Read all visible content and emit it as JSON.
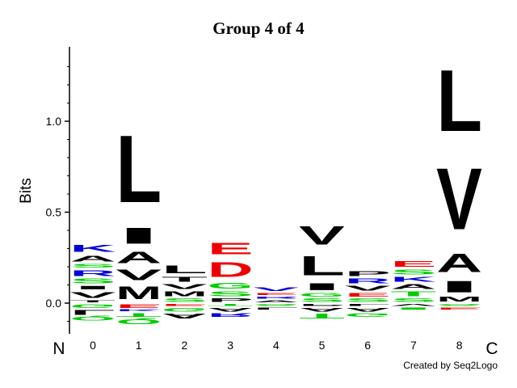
{
  "colors": {
    "hydrophobic": "#000000",
    "polar": "#00cc00",
    "positive": "#0000dd",
    "negative": "#ee0000",
    "special": "#00cc00"
  },
  "chart_data": {
    "type": "sequence-logo",
    "title": "Group 4 of 4",
    "xlabel": "",
    "ylabel": "Bits",
    "ylim": [
      -0.15,
      1.38
    ],
    "yticks": [
      0.0,
      0.5,
      1.0
    ],
    "ytick_labels": [
      "0.0",
      "0.5",
      "1.0"
    ],
    "n_terminus_label": "N",
    "c_terminus_label": "C",
    "credit": "Created by Seq2Logo",
    "positions": [
      {
        "x": "0",
        "above": [
          {
            "letter": "T",
            "bits": 0.02,
            "color": "#000000"
          },
          {
            "letter": "V",
            "bits": 0.05,
            "color": "#000000"
          },
          {
            "letter": "I",
            "bits": 0.03,
            "color": "#000000"
          },
          {
            "letter": "S",
            "bits": 0.04,
            "color": "#00cc00"
          },
          {
            "letter": "R",
            "bits": 0.05,
            "color": "#0000dd"
          },
          {
            "letter": "S",
            "bits": 0.03,
            "color": "#00cc00"
          },
          {
            "letter": "A",
            "bits": 0.05,
            "color": "#000000"
          },
          {
            "letter": "K",
            "bits": 0.06,
            "color": "#0000dd"
          }
        ],
        "below": [
          {
            "letter": "G",
            "bits": 0.03,
            "color": "#00cc00"
          },
          {
            "letter": "L",
            "bits": 0.04,
            "color": "#000000"
          },
          {
            "letter": "Q",
            "bits": 0.03,
            "color": "#00cc00"
          }
        ]
      },
      {
        "x": "1",
        "above": [
          {
            "letter": "M",
            "bits": 0.11,
            "color": "#000000"
          },
          {
            "letter": "V",
            "bits": 0.09,
            "color": "#000000"
          },
          {
            "letter": "A",
            "bits": 0.1,
            "color": "#000000"
          },
          {
            "letter": "I",
            "bits": 0.14,
            "color": "#000000"
          },
          {
            "letter": "L",
            "bits": 0.59,
            "color": "#000000"
          }
        ],
        "below": [
          {
            "letter": "E",
            "bits": 0.03,
            "color": "#ee0000"
          },
          {
            "letter": "K",
            "bits": 0.02,
            "color": "#0000dd"
          },
          {
            "letter": "T",
            "bits": 0.03,
            "color": "#00cc00"
          },
          {
            "letter": "Q",
            "bits": 0.04,
            "color": "#00cc00"
          }
        ]
      },
      {
        "x": "2",
        "above": [
          {
            "letter": "S",
            "bits": 0.03,
            "color": "#00cc00"
          },
          {
            "letter": "M",
            "bits": 0.04,
            "color": "#000000"
          },
          {
            "letter": "V",
            "bits": 0.04,
            "color": "#000000"
          },
          {
            "letter": "T",
            "bits": 0.04,
            "color": "#000000"
          },
          {
            "letter": "L",
            "bits": 0.07,
            "color": "#000000"
          }
        ],
        "below": [
          {
            "letter": "E",
            "bits": 0.02,
            "color": "#ee0000"
          },
          {
            "letter": "G",
            "bits": 0.03,
            "color": "#00cc00"
          },
          {
            "letter": "A",
            "bits": 0.04,
            "color": "#000000"
          }
        ]
      },
      {
        "x": "3",
        "above": [
          {
            "letter": "P",
            "bits": 0.03,
            "color": "#000000"
          },
          {
            "letter": "S",
            "bits": 0.04,
            "color": "#00cc00"
          },
          {
            "letter": "G",
            "bits": 0.05,
            "color": "#00cc00"
          },
          {
            "letter": "D",
            "bits": 0.13,
            "color": "#ee0000"
          },
          {
            "letter": "E",
            "bits": 0.1,
            "color": "#ee0000"
          }
        ],
        "below": [
          {
            "letter": "T",
            "bits": 0.02,
            "color": "#00cc00"
          },
          {
            "letter": "A",
            "bits": 0.03,
            "color": "#000000"
          },
          {
            "letter": "R",
            "bits": 0.03,
            "color": "#0000dd"
          }
        ]
      },
      {
        "x": "4",
        "above": [
          {
            "letter": "A",
            "bits": 0.02,
            "color": "#000000"
          },
          {
            "letter": "R",
            "bits": 0.02,
            "color": "#0000dd"
          },
          {
            "letter": "E",
            "bits": 0.02,
            "color": "#ee0000"
          },
          {
            "letter": "V",
            "bits": 0.03,
            "color": "#0000dd"
          }
        ],
        "below": [
          {
            "letter": "S",
            "bits": 0.02,
            "color": "#00cc00"
          },
          {
            "letter": "L",
            "bits": 0.02,
            "color": "#000000"
          }
        ]
      },
      {
        "x": "5",
        "above": [
          {
            "letter": "S",
            "bits": 0.03,
            "color": "#00cc00"
          },
          {
            "letter": "G",
            "bits": 0.03,
            "color": "#00cc00"
          },
          {
            "letter": "I",
            "bits": 0.06,
            "color": "#000000"
          },
          {
            "letter": "L",
            "bits": 0.17,
            "color": "#000000"
          },
          {
            "letter": "V",
            "bits": 0.16,
            "color": "#000000"
          }
        ],
        "below": [
          {
            "letter": "P",
            "bits": 0.02,
            "color": "#000000"
          },
          {
            "letter": "A",
            "bits": 0.03,
            "color": "#000000"
          },
          {
            "letter": "T",
            "bits": 0.04,
            "color": "#00cc00"
          }
        ]
      },
      {
        "x": "6",
        "above": [
          {
            "letter": "S",
            "bits": 0.03,
            "color": "#00cc00"
          },
          {
            "letter": "E",
            "bits": 0.03,
            "color": "#ee0000"
          },
          {
            "letter": "V",
            "bits": 0.04,
            "color": "#000000"
          },
          {
            "letter": "R",
            "bits": 0.04,
            "color": "#0000dd"
          },
          {
            "letter": "P",
            "bits": 0.04,
            "color": "#000000"
          }
        ],
        "below": [
          {
            "letter": "L",
            "bits": 0.02,
            "color": "#000000"
          },
          {
            "letter": "A",
            "bits": 0.03,
            "color": "#000000"
          },
          {
            "letter": "G",
            "bits": 0.03,
            "color": "#00cc00"
          }
        ]
      },
      {
        "x": "7",
        "above": [
          {
            "letter": "S",
            "bits": 0.03,
            "color": "#00cc00"
          },
          {
            "letter": "T",
            "bits": 0.04,
            "color": "#00cc00"
          },
          {
            "letter": "A",
            "bits": 0.04,
            "color": "#000000"
          },
          {
            "letter": "K",
            "bits": 0.04,
            "color": "#0000dd"
          },
          {
            "letter": "S",
            "bits": 0.04,
            "color": "#00cc00"
          },
          {
            "letter": "E",
            "bits": 0.05,
            "color": "#ee0000"
          }
        ],
        "below": [
          {
            "letter": "V",
            "bits": 0.02,
            "color": "#000000"
          },
          {
            "letter": "I",
            "bits": 0.02,
            "color": "#00cc00"
          }
        ]
      },
      {
        "x": "8",
        "above": [
          {
            "letter": "M",
            "bits": 0.04,
            "color": "#000000"
          },
          {
            "letter": "I",
            "bits": 0.1,
            "color": "#000000"
          },
          {
            "letter": "A",
            "bits": 0.16,
            "color": "#000000"
          },
          {
            "letter": "V",
            "bits": 0.54,
            "color": "#000000"
          },
          {
            "letter": "L",
            "bits": 0.54,
            "color": "#000000"
          }
        ],
        "below": [
          {
            "letter": "S",
            "bits": 0.02,
            "color": "#00cc00"
          },
          {
            "letter": "E",
            "bits": 0.02,
            "color": "#ee0000"
          }
        ]
      }
    ]
  }
}
